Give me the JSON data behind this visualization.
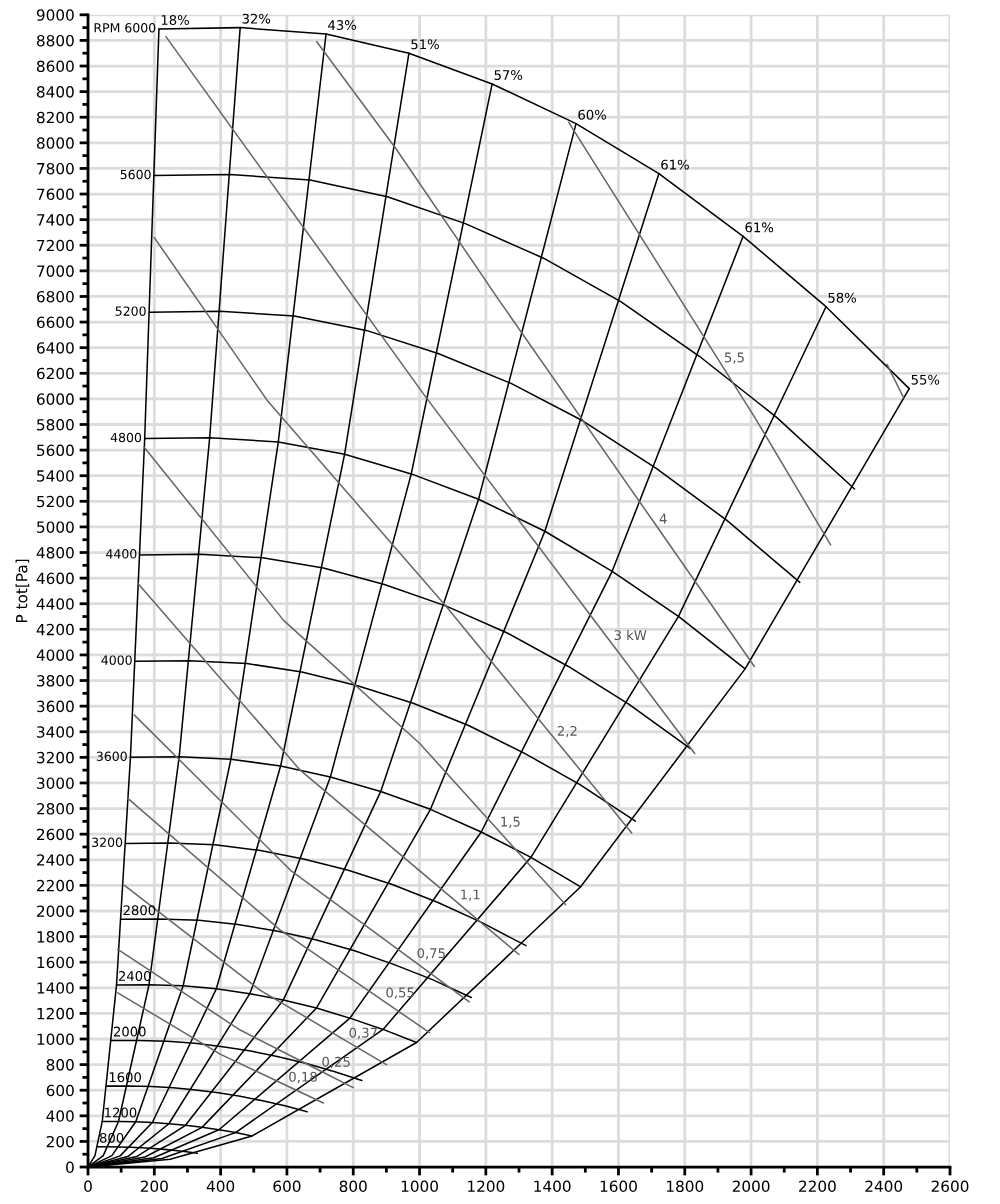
{
  "chart_data": {
    "type": "line",
    "ylabel": "P tot[Pa]",
    "xlim": [
      0,
      2600
    ],
    "ylim": [
      0,
      9000
    ],
    "xticks": [
      0,
      {
        "value": 100,
        "label": null
      },
      200,
      {
        "value": 300,
        "label": null
      },
      400,
      {
        "value": 500,
        "label": null
      },
      600,
      {
        "value": 700,
        "label": null
      },
      800,
      {
        "value": 900,
        "label": null
      },
      1000,
      {
        "value": 1100,
        "label": null
      },
      1200,
      {
        "value": 1300,
        "label": null
      },
      1400,
      {
        "value": 1500,
        "label": null
      },
      1600,
      {
        "value": 1700,
        "label": null
      },
      1800,
      {
        "value": 1900,
        "label": null
      },
      2000,
      {
        "value": 2100,
        "label": null
      },
      2200,
      {
        "value": 2300,
        "label": null
      },
      2400,
      {
        "value": 2500,
        "label": null
      },
      2600
    ],
    "yticks": [
      0,
      {
        "value": 100,
        "label": null
      },
      200,
      {
        "value": 300,
        "label": null
      },
      400,
      {
        "value": 500,
        "label": null
      },
      600,
      {
        "value": 700,
        "label": null
      },
      800,
      {
        "value": 900,
        "label": null
      },
      1000,
      {
        "value": 1100,
        "label": null
      },
      1200,
      {
        "value": 1300,
        "label": null
      },
      1400,
      {
        "value": 1500,
        "label": null
      },
      1600,
      {
        "value": 1700,
        "label": null
      },
      1800,
      {
        "value": 1900,
        "label": null
      },
      2000,
      {
        "value": 2100,
        "label": null
      },
      2200,
      {
        "value": 2300,
        "label": null
      },
      2400,
      {
        "value": 2500,
        "label": null
      },
      2600,
      {
        "value": 2700,
        "label": null
      },
      2800,
      {
        "value": 2900,
        "label": null
      },
      3000,
      {
        "value": 3100,
        "label": null
      },
      3200,
      {
        "value": 3300,
        "label": null
      },
      3400,
      {
        "value": 3500,
        "label": null
      },
      3600,
      {
        "value": 3700,
        "label": null
      },
      3800,
      {
        "value": 3900,
        "label": null
      },
      4000,
      {
        "value": 4100,
        "label": null
      },
      4200,
      {
        "value": 4300,
        "label": null
      },
      4400,
      {
        "value": 4500,
        "label": null
      },
      4600,
      {
        "value": 4700,
        "label": null
      },
      4800,
      {
        "value": 4900,
        "label": null
      },
      5000,
      {
        "value": 5100,
        "label": null
      },
      5200,
      {
        "value": 5300,
        "label": null
      },
      5400,
      {
        "value": 5500,
        "label": null
      },
      5600,
      {
        "value": 5700,
        "label": null
      },
      5800,
      {
        "value": 5900,
        "label": null
      },
      6000,
      {
        "value": 6100,
        "label": null
      },
      6200,
      {
        "value": 6300,
        "label": null
      },
      6400,
      {
        "value": 6500,
        "label": null
      },
      6600,
      {
        "value": 6700,
        "label": null
      },
      6800,
      {
        "value": 6900,
        "label": null
      },
      7000,
      {
        "value": 7100,
        "label": null
      },
      7200,
      {
        "value": 7300,
        "label": null
      },
      7400,
      {
        "value": 7500,
        "label": null
      },
      7600,
      {
        "value": 7700,
        "label": null
      },
      7800,
      {
        "value": 7900,
        "label": null
      },
      8000,
      {
        "value": 8100,
        "label": null
      },
      8200,
      {
        "value": 8300,
        "label": null
      },
      8400,
      {
        "value": 8500,
        "label": null
      },
      8600,
      {
        "value": 8700,
        "label": null
      },
      8800,
      {
        "value": 8900,
        "label": null
      },
      9000
    ],
    "grid": true,
    "series": [
      {
        "name": "RPM 6000",
        "color": "#000000",
        "x": [
          214,
          459,
          718,
          968,
          1219,
          1472,
          1722,
          1976,
          2226,
          2477
        ],
        "values": [
          8890,
          8900,
          8850,
          8700,
          8460,
          8150,
          7760,
          7270,
          6720,
          6080
        ]
      },
      {
        "name": "5600",
        "color": "#000000",
        "x": [
          200,
          428,
          670,
          903,
          1138,
          1374,
          1607,
          1844,
          2078,
          2312
        ],
        "values": [
          7744,
          7753,
          7709,
          7579,
          7369,
          7099,
          6760,
          6333,
          5854,
          5296
        ]
      },
      {
        "name": "5200",
        "color": "#000000",
        "x": [
          185,
          398,
          622,
          839,
          1056,
          1276,
          1492,
          1713,
          1929,
          2147
        ],
        "values": [
          6677,
          6685,
          6647,
          6535,
          6354,
          6121,
          5829,
          5460,
          5047,
          4567
        ]
      },
      {
        "name": "4800",
        "color": "#000000",
        "x": [
          171,
          367,
          574,
          774,
          975,
          1178,
          1378,
          1581,
          1781,
          1982
        ],
        "values": [
          5690,
          5696,
          5664,
          5568,
          5414,
          5216,
          4966,
          4653,
          4301,
          3891
        ]
      },
      {
        "name": "4400",
        "color": "#000000",
        "x": [
          157,
          337,
          527,
          710,
          894,
          1079,
          1263,
          1449,
          1632,
          1816
        ],
        "values": [
          4781,
          4786,
          4759,
          4679,
          4550,
          4383,
          4173,
          3910,
          3614,
          3270
        ]
      },
      {
        "name": "4000",
        "color": "#000000",
        "x": [
          143,
          306,
          479,
          645,
          813,
          981,
          1148,
          1317,
          1484,
          1651
        ],
        "values": [
          3951,
          3955,
          3933,
          3867,
          3760,
          3622,
          3449,
          3231,
          2987,
          2702
        ]
      },
      {
        "name": "3600",
        "color": "#000000",
        "x": [
          128,
          275,
          431,
          581,
          731,
          883,
          1033,
          1186,
          1336,
          1486
        ],
        "values": [
          3200,
          3204,
          3186,
          3132,
          3046,
          2934,
          2794,
          2617,
          2419,
          2189
        ]
      },
      {
        "name": "3200",
        "color": "#000000",
        "x": [
          114,
          245,
          383,
          516,
          650,
          785,
          918,
          1054,
          1187,
          1321
        ],
        "values": [
          2528,
          2531,
          2517,
          2474,
          2406,
          2318,
          2207,
          2068,
          1911,
          1729
        ]
      },
      {
        "name": "2800",
        "color": "#000000",
        "x": [
          100,
          214,
          335,
          452,
          569,
          687,
          804,
          922,
          1039,
          1156
        ],
        "values": [
          1936,
          1938,
          1928,
          1895,
          1843,
          1775,
          1690,
          1583,
          1464,
          1324
        ]
      },
      {
        "name": "2400",
        "color": "#000000",
        "x": [
          86,
          184,
          287,
          387,
          488,
          589,
          689,
          790,
          890,
          991
        ],
        "values": [
          1422,
          1424,
          1416,
          1392,
          1354,
          1304,
          1242,
          1163,
          1075,
          973
        ]
      },
      {
        "name": "2000",
        "color": "#000000",
        "x": [
          71,
          153,
          239,
          323,
          406,
          491,
          574,
          659,
          742,
          826
        ],
        "values": [
          988,
          989,
          983,
          967,
          940,
          906,
          862,
          808,
          747,
          676
        ]
      },
      {
        "name": "1600",
        "color": "#000000",
        "x": [
          57,
          122,
          191,
          258,
          325,
          393,
          459,
          527,
          594,
          661
        ],
        "values": [
          632,
          633,
          629,
          619,
          602,
          580,
          552,
          517,
          478,
          432
        ]
      },
      {
        "name": "1200",
        "color": "#000000",
        "x": [
          43,
          92,
          144,
          194,
          244,
          294,
          344,
          395,
          445,
          495
        ],
        "values": [
          356,
          356,
          354,
          348,
          338,
          326,
          310,
          291,
          269,
          243
        ]
      },
      {
        "name": "800",
        "color": "#000000",
        "x": [
          29,
          61,
          96,
          129,
          163,
          196,
          230,
          263,
          297,
          330
        ],
        "values": [
          158,
          158,
          157,
          155,
          150,
          145,
          138,
          129,
          119,
          108
        ]
      },
      {
        "name": "18%",
        "color": "#000000",
        "x": [
          214,
          171,
          128,
          86,
          43,
          21,
          0
        ],
        "values": [
          8890,
          5690,
          3200,
          1422,
          356,
          89,
          0
        ]
      },
      {
        "name": "32%",
        "color": "#000000",
        "x": [
          459,
          367,
          275,
          184,
          92,
          46,
          0
        ],
        "values": [
          8900,
          5696,
          3204,
          1424,
          356,
          89,
          0
        ]
      },
      {
        "name": "43%",
        "color": "#000000",
        "x": [
          718,
          574,
          431,
          287,
          144,
          72,
          0
        ],
        "values": [
          8850,
          5664,
          3186,
          1416,
          354,
          89,
          0
        ]
      },
      {
        "name": "51%",
        "color": "#000000",
        "x": [
          968,
          774,
          581,
          387,
          194,
          97,
          0
        ],
        "values": [
          8700,
          5568,
          3132,
          1392,
          348,
          87,
          0
        ]
      },
      {
        "name": "57%",
        "color": "#000000",
        "x": [
          1219,
          975,
          731,
          488,
          244,
          122,
          0
        ],
        "values": [
          8460,
          5414,
          3046,
          1354,
          338,
          85,
          0
        ]
      },
      {
        "name": "60%",
        "color": "#000000",
        "x": [
          1472,
          1178,
          883,
          589,
          294,
          147,
          0
        ],
        "values": [
          8150,
          5216,
          2934,
          1304,
          326,
          82,
          0
        ]
      },
      {
        "name": "61%",
        "color": "#000000",
        "x": [
          1722,
          1378,
          1033,
          689,
          344,
          172,
          0
        ],
        "values": [
          7760,
          4966,
          2794,
          1242,
          310,
          78,
          0
        ]
      },
      {
        "name": "61%",
        "color": "#000000",
        "x": [
          1976,
          1581,
          1186,
          790,
          395,
          198,
          0
        ],
        "values": [
          7270,
          4653,
          2617,
          1163,
          291,
          73,
          0
        ]
      },
      {
        "name": "58%",
        "color": "#000000",
        "x": [
          2226,
          1781,
          1336,
          890,
          445,
          223,
          0
        ],
        "values": [
          6720,
          4301,
          2419,
          1075,
          269,
          67,
          0
        ]
      },
      {
        "name": "55%",
        "color": "#000000",
        "x": [
          2477,
          1982,
          1486,
          991,
          495,
          248,
          0
        ],
        "values": [
          6080,
          3891,
          2189,
          973,
          243,
          61,
          0
        ]
      },
      {
        "color": "#666666",
        "x": [
          90,
          400,
          600,
          710
        ],
        "values": [
          1360,
          880,
          635,
          500
        ]
      },
      {
        "color": "#666666",
        "x": [
          90,
          459,
          700,
          800
        ],
        "values": [
          1700,
          1070,
          752,
          620
        ]
      },
      {
        "color": "#666666",
        "x": [
          110,
          520,
          782,
          900
        ],
        "values": [
          2200,
          1380,
          980,
          800
        ]
      },
      {
        "color": "#666666",
        "x": [
          120,
          580,
          893,
          1030
        ],
        "values": [
          2880,
          1850,
          1294,
          1050
        ]
      },
      {
        "color": "#666666",
        "x": [
          140,
          610,
          987,
          1150
        ],
        "values": [
          3530,
          2320,
          1601,
          1290
        ]
      },
      {
        "color": "#666666",
        "x": [
          150,
          640,
          1117,
          1300
        ],
        "values": [
          4560,
          3100,
          2059,
          1660
        ]
      },
      {
        "color": "#666666",
        "x": [
          170,
          590,
          1000,
          1238,
          1440
        ],
        "values": [
          5620,
          4270,
          3310,
          2628,
          2050
        ]
      },
      {
        "color": "#666666",
        "x": [
          200,
          540,
          1080,
          1410,
          1640
        ],
        "values": [
          7260,
          5990,
          4380,
          3337,
          2610
        ]
      },
      {
        "color": "#666666",
        "x": [
          235,
          1020,
          1581,
          1830
        ],
        "values": [
          8830,
          6010,
          4085,
          3230
        ]
      },
      {
        "color": "#666666",
        "x": [
          690,
          930,
          1240,
          1718,
          2010
        ],
        "values": [
          8790,
          7950,
          6770,
          4995,
          3910
        ]
      },
      {
        "color": "#666666",
        "x": [
          1450,
          1914,
          2010,
          2240
        ],
        "values": [
          8160,
          6254,
          5860,
          4860
        ]
      },
      {
        "color": "#666666",
        "x": [
          2410,
          2460
        ],
        "values": [
          6270,
          6010
        ]
      }
    ],
    "annotations": [
      {
        "text": "0,18",
        "x": 600,
        "y": 635
      },
      {
        "text": "0,25",
        "x": 700,
        "y": 752
      },
      {
        "text": "0,37",
        "x": 782,
        "y": 980
      },
      {
        "text": "0,55",
        "x": 893,
        "y": 1294
      },
      {
        "text": "0,75",
        "x": 987,
        "y": 1601
      },
      {
        "text": "1,1",
        "x": 1117,
        "y": 2059
      },
      {
        "text": "1,5",
        "x": 1238,
        "y": 2628
      },
      {
        "text": "2,2",
        "x": 1410,
        "y": 3337
      },
      {
        "text": "3 kW",
        "x": 1581,
        "y": 4085
      },
      {
        "text": "4",
        "x": 1718,
        "y": 4995
      },
      {
        "text": "5,5",
        "x": 1914,
        "y": 6254
      }
    ]
  }
}
